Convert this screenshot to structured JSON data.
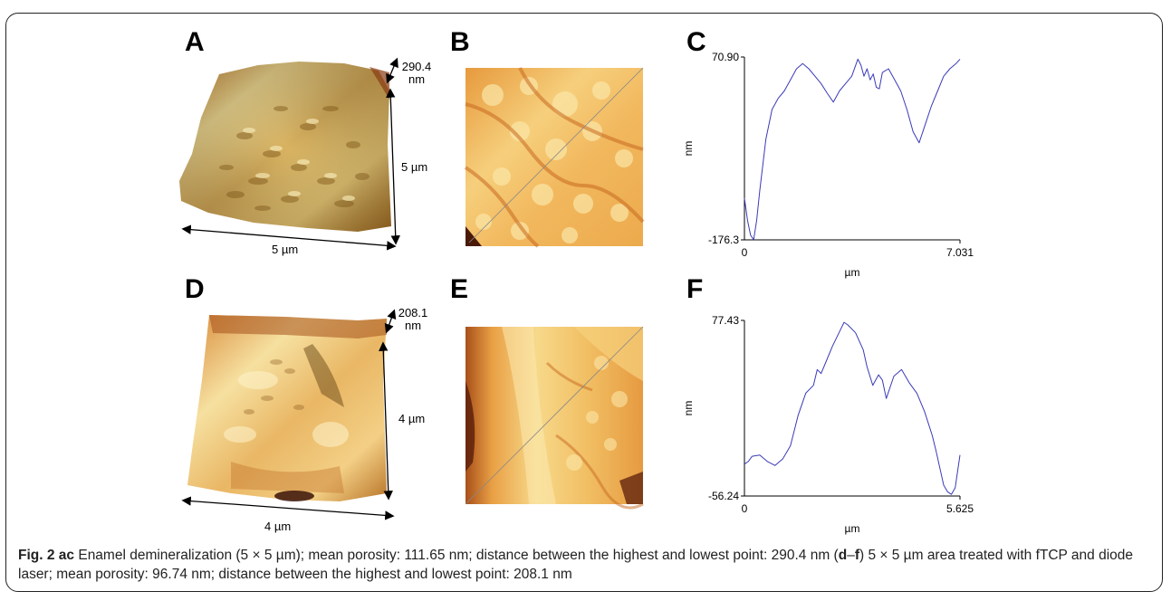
{
  "panels": {
    "a": {
      "letter": "A",
      "z_range_value": "290.4",
      "z_range_unit": "nm",
      "side_label": "5 µm",
      "bottom_label": "5 µm"
    },
    "b": {
      "letter": "B"
    },
    "c": {
      "letter": "C"
    },
    "d": {
      "letter": "D",
      "z_range_value": "208.1",
      "z_range_unit": "nm",
      "side_label": "4 µm",
      "bottom_label": "4 µm"
    },
    "e": {
      "letter": "E"
    },
    "f": {
      "letter": "F"
    }
  },
  "chart_data": [
    {
      "type": "line",
      "panel": "C",
      "xlabel": "µm",
      "ylabel": "nm",
      "xlim": [
        0,
        7.031
      ],
      "ylim": [
        -176.3,
        70.9
      ],
      "x_tick_labels": [
        "0",
        "7.031"
      ],
      "y_tick_labels": [
        "70.90",
        "-176.3"
      ],
      "series": [
        {
          "x": [
            0,
            0.1,
            0.2,
            0.3,
            0.4,
            0.5,
            0.7,
            0.9,
            1.1,
            1.3,
            1.5,
            1.7,
            1.9,
            2.1,
            2.3,
            2.5,
            2.7,
            2.9,
            3.1,
            3.3,
            3.5,
            3.7,
            3.8,
            3.9,
            4.0,
            4.1,
            4.2,
            4.3,
            4.4,
            4.5,
            4.7,
            4.9,
            5.1,
            5.3,
            5.5,
            5.7,
            5.9,
            6.1,
            6.3,
            6.5,
            6.7,
            6.9,
            7.031
          ],
          "y": [
            -120,
            -150,
            -170,
            -176,
            -150,
            -110,
            -40,
            0,
            15,
            25,
            40,
            55,
            62,
            55,
            45,
            35,
            22,
            10,
            25,
            35,
            45,
            68,
            60,
            45,
            55,
            40,
            48,
            30,
            28,
            50,
            55,
            40,
            25,
            0,
            -30,
            -45,
            -20,
            5,
            25,
            45,
            55,
            62,
            68
          ]
        }
      ]
    },
    {
      "type": "line",
      "panel": "F",
      "xlabel": "µm",
      "ylabel": "nm",
      "xlim": [
        0,
        5.625
      ],
      "ylim": [
        -56.24,
        77.43
      ],
      "x_tick_labels": [
        "0",
        "5.625"
      ],
      "y_tick_labels": [
        "77.43",
        "-56.24"
      ],
      "series": [
        {
          "x": [
            0,
            0.1,
            0.2,
            0.4,
            0.6,
            0.8,
            1.0,
            1.2,
            1.4,
            1.6,
            1.8,
            1.9,
            2.0,
            2.1,
            2.3,
            2.5,
            2.6,
            2.7,
            2.9,
            3.1,
            3.2,
            3.35,
            3.5,
            3.6,
            3.7,
            3.9,
            4.1,
            4.3,
            4.5,
            4.7,
            4.9,
            5.0,
            5.1,
            5.2,
            5.3,
            5.4,
            5.5,
            5.625
          ],
          "y": [
            -32,
            -30,
            -26,
            -25,
            -30,
            -33,
            -28,
            -18,
            5,
            22,
            28,
            40,
            37,
            44,
            58,
            70,
            76,
            74,
            68,
            55,
            42,
            28,
            36,
            32,
            18,
            35,
            40,
            30,
            22,
            8,
            -10,
            -22,
            -35,
            -48,
            -53,
            -55,
            -50,
            -25
          ]
        }
      ]
    }
  ],
  "caption": {
    "fig_label": "Fig. 2",
    "range1_start": "a",
    "range_dash": "–",
    "range1_end": "c",
    "text1": " Enamel demineralization (5 × 5 µm); mean porosity: 111.65 nm; distance between the highest and lowest point: 290.4 nm (",
    "range2_start": "d",
    "range2_dash": "–",
    "range2_end": "f",
    "text2": ") 5 × 5 µm area treated with fTCP and diode laser; mean porosity: 96.74 nm; distance between the highest and lowest point: 208.1 nm"
  },
  "colors": {
    "surface_light": "#f4e49a",
    "surface_mid": "#e9a445",
    "surface_dark": "#8a3a12",
    "profile_line": "#3a3ab8"
  }
}
